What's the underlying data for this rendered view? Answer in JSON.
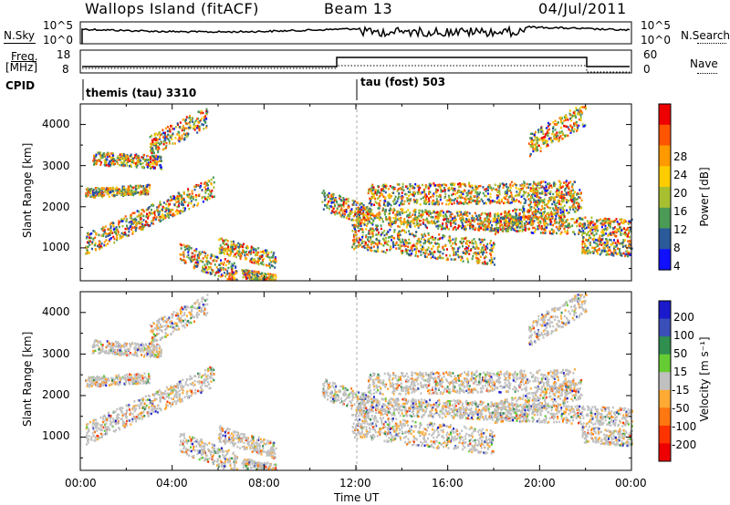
{
  "header": {
    "station": "Wallops Island (fitACF)",
    "beam": "Beam 13",
    "date": "04/Jul/2011"
  },
  "noise_panel": {
    "left_label": "N.Sky",
    "left_ticks": [
      "10^5",
      "10^0"
    ],
    "right_label": "N.Search",
    "right_ticks": [
      "10^5",
      "10^0"
    ]
  },
  "freq_panel": {
    "left_label_1": "Freq.",
    "left_label_2": "[MHz]",
    "left_ticks": [
      "18",
      "8"
    ],
    "right_label": "Nave",
    "right_ticks": [
      "60",
      "0"
    ]
  },
  "cpid_panel": {
    "label": "CPID",
    "programs": [
      {
        "name": "themis (tau) 3310",
        "start_hour": 0
      },
      {
        "name": "tau (fost) 503",
        "start_hour": 11.9
      }
    ]
  },
  "chart_data": [
    {
      "type": "heatmap",
      "title": "",
      "ylabel": "Slant Range [km]",
      "xlabel": "",
      "xlim": [
        0,
        24
      ],
      "ylim": [
        200,
        4500
      ],
      "yticks": [
        "1000",
        "2000",
        "3000",
        "4000"
      ],
      "colorbar": {
        "label": "Power [dB]",
        "ticks": [
          "28",
          "24",
          "20",
          "16",
          "12",
          "8",
          "4"
        ],
        "colors": [
          "#ee0000",
          "#ff5500",
          "#ff9900",
          "#ffcc00",
          "#a8c030",
          "#4b9a55",
          "#2a5a9a",
          "#1010ff"
        ]
      }
    },
    {
      "type": "heatmap",
      "title": "",
      "ylabel": "Slant Range [km]",
      "xlabel": "Time UT",
      "xlim": [
        0,
        24
      ],
      "ylim": [
        200,
        4500
      ],
      "yticks": [
        "1000",
        "2000",
        "3000",
        "4000"
      ],
      "xticks": [
        "00:00",
        "04:00",
        "08:00",
        "12:00",
        "16:00",
        "20:00",
        "00:00"
      ],
      "colorbar": {
        "label": "Velocity [m s⁻¹]",
        "ticks": [
          "200",
          "100",
          "50",
          "15",
          "-15",
          "-50",
          "-100",
          "-200"
        ],
        "colors": [
          "#1a1acc",
          "#3a4fb8",
          "#2f8f4f",
          "#66cc33",
          "#c0c0c0",
          "#ffaa33",
          "#ff7711",
          "#ff3300",
          "#ee0000"
        ]
      }
    }
  ]
}
